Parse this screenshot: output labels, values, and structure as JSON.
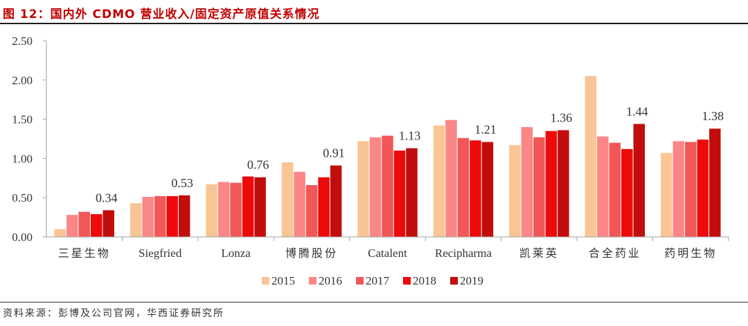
{
  "figure": {
    "title": "图 12：国内外 CDMO 营业收入/固定资产原值关系情况",
    "source": "资料来源：彭博及公司官网，华西证券研究所"
  },
  "colors": {
    "title": "#c00000",
    "series": [
      "#f9c594",
      "#fb8686",
      "#f25757",
      "#ee0a0a",
      "#c20d0d"
    ],
    "axis": "#9e9e9e",
    "text": "#333333"
  },
  "chart_data": {
    "type": "bar",
    "title": "国内外 CDMO 营业收入/固定资产原值关系情况",
    "xlabel": "",
    "ylabel": "",
    "ylim": [
      0,
      2.5
    ],
    "yticks": [
      "0.00",
      "0.50",
      "1.00",
      "1.50",
      "2.00",
      "2.50"
    ],
    "grid": false,
    "legend_position": "bottom",
    "categories": [
      "三星生物",
      "Siegfried",
      "Lonza",
      "博腾股份",
      "Catalent",
      "Recipharma",
      "凯莱英",
      "合全药业",
      "药明生物"
    ],
    "series": [
      {
        "name": "2015",
        "values": [
          0.1,
          0.43,
          0.67,
          0.95,
          1.22,
          1.42,
          1.17,
          2.05,
          1.07
        ]
      },
      {
        "name": "2016",
        "values": [
          0.28,
          0.51,
          0.7,
          0.83,
          1.27,
          1.49,
          1.4,
          1.28,
          1.22
        ]
      },
      {
        "name": "2017",
        "values": [
          0.32,
          0.52,
          0.69,
          0.66,
          1.29,
          1.26,
          1.27,
          1.2,
          1.21
        ]
      },
      {
        "name": "2018",
        "values": [
          0.29,
          0.52,
          0.77,
          0.76,
          1.1,
          1.23,
          1.35,
          1.12,
          1.24
        ]
      },
      {
        "name": "2019",
        "values": [
          0.34,
          0.53,
          0.76,
          0.91,
          1.13,
          1.21,
          1.36,
          1.44,
          1.38
        ]
      }
    ],
    "data_labels": [
      "0.34",
      "0.53",
      "0.76",
      "0.91",
      "1.13",
      "1.21",
      "1.36",
      "1.44",
      "1.38"
    ]
  }
}
